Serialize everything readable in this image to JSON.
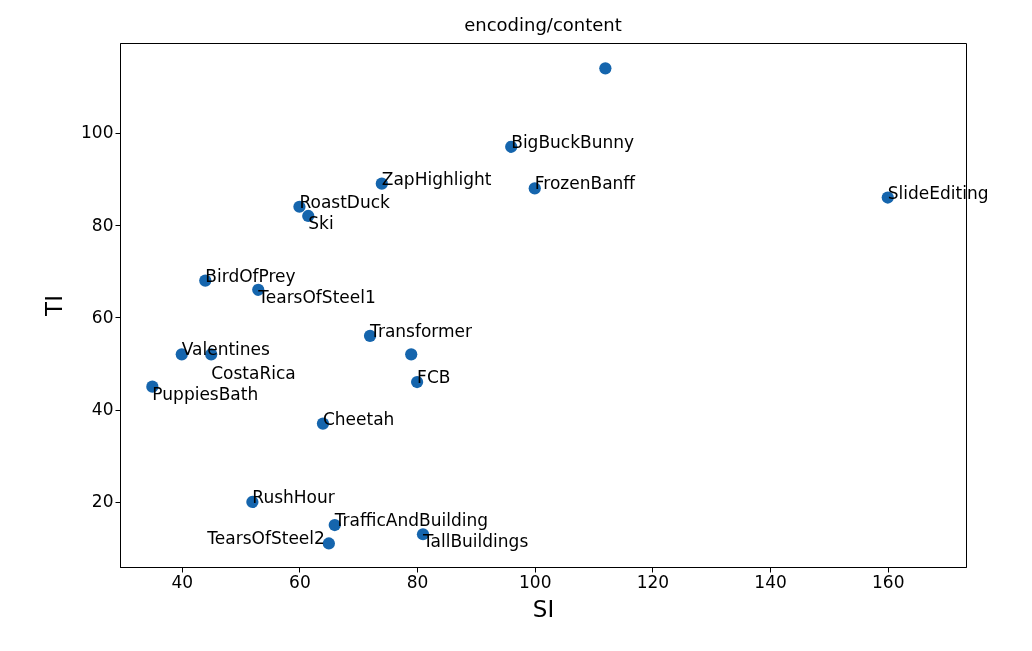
{
  "chart_data": {
    "type": "scatter",
    "title": "encoding/content",
    "xlabel": "SI",
    "ylabel": "TI",
    "xlim": [
      29.5,
      173.3
    ],
    "ylim": [
      5.9,
      119.5
    ],
    "xticks": [
      40,
      60,
      80,
      100,
      120,
      140,
      160
    ],
    "yticks": [
      20,
      40,
      60,
      80,
      100
    ],
    "grid": false,
    "marker": "circle",
    "series": [
      {
        "color": "#1565ad",
        "x": [
          112,
          96,
          74,
          100,
          160,
          60,
          61.5,
          44,
          53,
          72,
          40,
          45,
          79,
          35,
          80,
          64,
          52,
          66,
          81,
          65
        ],
        "values": [
          114,
          97,
          89,
          88,
          86,
          84,
          82,
          68,
          66,
          56,
          52,
          52,
          52,
          45,
          46,
          37,
          20,
          15,
          13,
          11
        ]
      }
    ],
    "annotations": [
      {
        "text": "BigBuckBunny",
        "x": 96,
        "y": 97
      },
      {
        "text": "ZapHighlight",
        "x": 74,
        "y": 89
      },
      {
        "text": "FrozenBanff",
        "x": 100,
        "y": 88
      },
      {
        "text": "SlideEditing",
        "x": 160,
        "y": 86
      },
      {
        "text": "RoastDuck",
        "x": 60,
        "y": 84
      },
      {
        "text": "Ski",
        "x": 61.5,
        "y": 82
      },
      {
        "text": "BirdOfPrey",
        "x": 44,
        "y": 68
      },
      {
        "text": "TearsOfSteel1",
        "x": 53,
        "y": 66
      },
      {
        "text": "Transformer",
        "x": 72,
        "y": 56
      },
      {
        "text": "Valentines",
        "x": 40,
        "y": 52
      },
      {
        "text": "CostaRica",
        "x": 45,
        "y": 52
      },
      {
        "text": "PuppiesBath",
        "x": 35,
        "y": 45
      },
      {
        "text": "FCB",
        "x": 80,
        "y": 46
      },
      {
        "text": "Cheetah",
        "x": 64,
        "y": 37
      },
      {
        "text": "RushHour",
        "x": 52,
        "y": 20
      },
      {
        "text": "TrafficAndBuilding",
        "x": 66,
        "y": 15
      },
      {
        "text": "TallBuildings",
        "x": 81,
        "y": 13
      },
      {
        "text": "TearsOfSteel2",
        "x": 65,
        "y": 11
      }
    ]
  }
}
